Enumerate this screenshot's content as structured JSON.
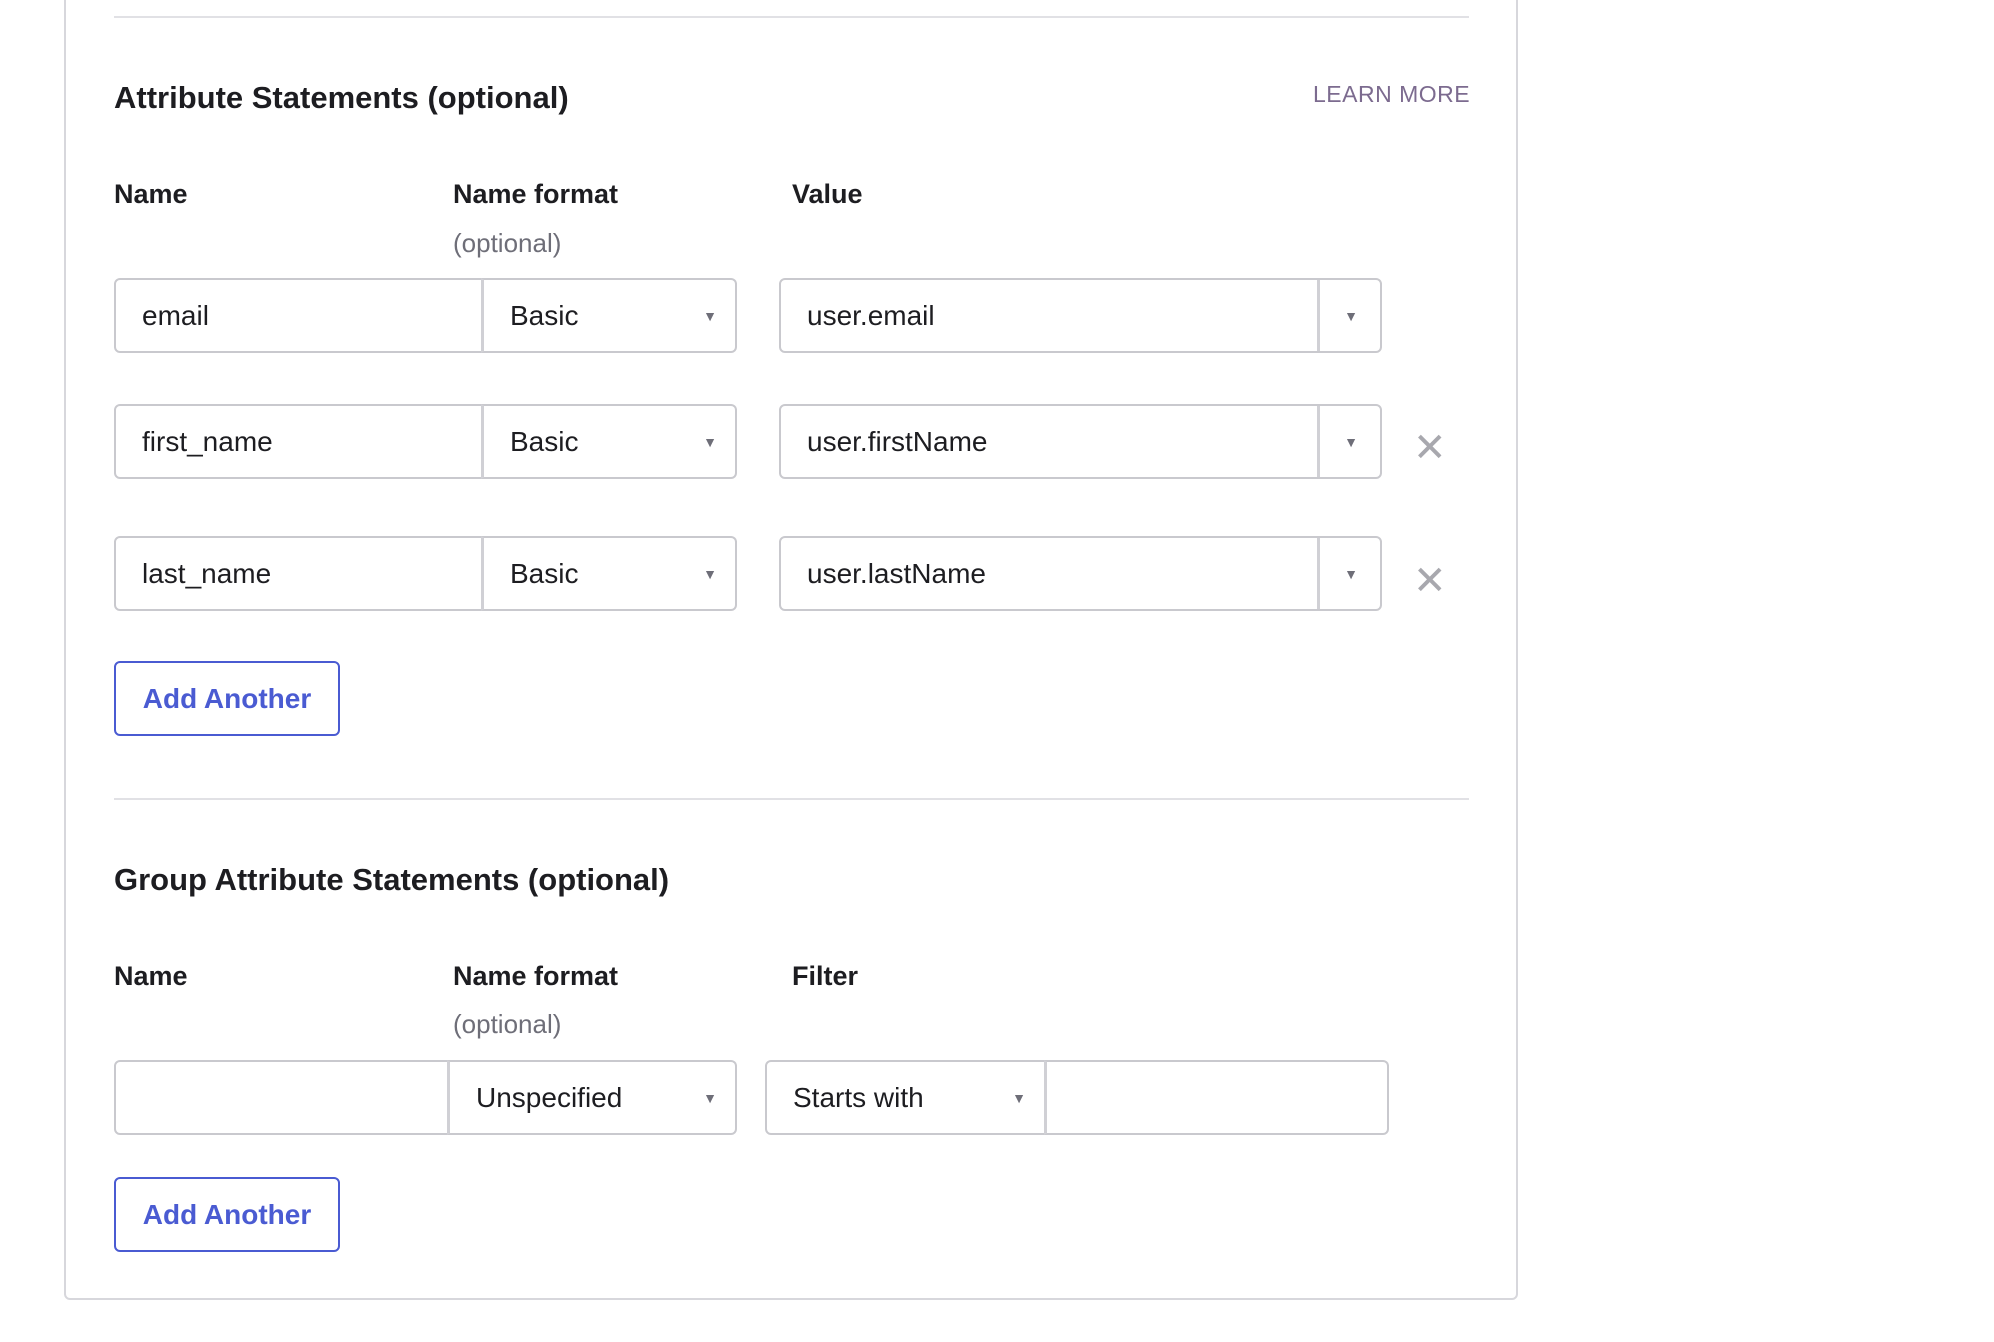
{
  "attribute_statements": {
    "title": "Attribute Statements (optional)",
    "learn_more": "LEARN MORE",
    "columns": {
      "name": "Name",
      "name_format": "Name format",
      "name_format_hint": "(optional)",
      "value": "Value"
    },
    "rows": [
      {
        "name": "email",
        "format": "Basic",
        "value": "user.email",
        "removable": false
      },
      {
        "name": "first_name",
        "format": "Basic",
        "value": "user.firstName",
        "removable": true
      },
      {
        "name": "last_name",
        "format": "Basic",
        "value": "user.lastName",
        "removable": true
      }
    ],
    "add_label": "Add Another",
    "remove_glyph": "✕"
  },
  "group_attribute_statements": {
    "title": "Group Attribute Statements (optional)",
    "columns": {
      "name": "Name",
      "name_format": "Name format",
      "name_format_hint": "(optional)",
      "filter": "Filter"
    },
    "row": {
      "name": "",
      "format": "Unspecified",
      "filter_type": "Starts with",
      "filter_value": ""
    },
    "add_label": "Add Another"
  },
  "icons": {
    "dropdown": "caret-down-icon",
    "remove": "close-icon"
  },
  "colors": {
    "accent": "#4a5bd2",
    "link": "#7c6b8f",
    "border": "#c9c9ce"
  }
}
